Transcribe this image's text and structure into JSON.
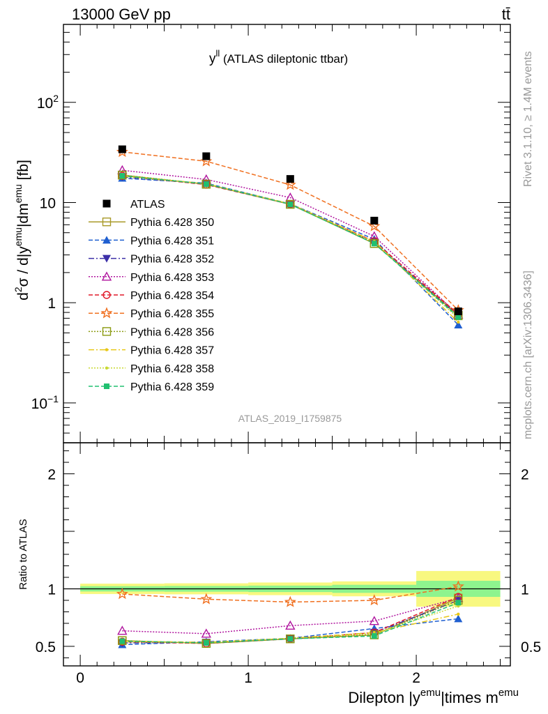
{
  "header": {
    "energy_label": "13000 GeV pp",
    "process_label": "tt̄"
  },
  "side_labels": {
    "rivet": "Rivet 3.1.10, ≥ 1.4M events",
    "mcplots": "mcplots.cern.ch [arXiv:1306.3436]"
  },
  "colors": {
    "ATLAS": "#000000",
    "p350": "#a89a28",
    "p351": "#1f5fd0",
    "p352": "#3c2fa8",
    "p353": "#b0149e",
    "p354": "#e01828",
    "p355": "#f07020",
    "p356": "#8a9a10",
    "p357": "#e8c818",
    "p358": "#c8d830",
    "p359": "#20c070",
    "band_inner": "#8ef48e",
    "band_outer": "#f8f880"
  },
  "chart_data": [
    {
      "type": "line",
      "panel": "main",
      "title": "y^ll (ATLAS dileptonic ttbar)",
      "title_main": "y",
      "title_sup": "ll",
      "title_rest": " (ATLAS dileptonic ttbar)",
      "ylabel": "d²σ / d|y^emu|dm^emu [fb]",
      "yscale": "log",
      "ylim": [
        0.04,
        600
      ],
      "xlim": [
        -0.1,
        2.56
      ],
      "yticks": [
        {
          "value": 0.1,
          "label": "10",
          "sup": "−1"
        },
        {
          "value": 1,
          "label": "1",
          "sup": ""
        },
        {
          "value": 10,
          "label": "10",
          "sup": ""
        },
        {
          "value": 100,
          "label": "10",
          "sup": "2"
        }
      ],
      "watermark": "ATLAS_2019_I1759875",
      "x": [
        0.25,
        0.75,
        1.25,
        1.75,
        2.25
      ],
      "data": {
        "name": "ATLAS",
        "values": [
          34,
          29,
          17.2,
          6.6,
          0.82
        ]
      },
      "series": [
        {
          "name": "Pythia 6.428 350",
          "key": "p350",
          "values": [
            18.8,
            15.2,
            9.6,
            3.9,
            0.75
          ]
        },
        {
          "name": "Pythia 6.428 351",
          "key": "p351",
          "values": [
            17.5,
            15.6,
            9.7,
            4.3,
            0.6
          ]
        },
        {
          "name": "Pythia 6.428 352",
          "key": "p352",
          "values": [
            18.0,
            15.4,
            9.6,
            4.0,
            0.74
          ]
        },
        {
          "name": "Pythia 6.428 353",
          "key": "p353",
          "values": [
            21.0,
            17.0,
            11.2,
            4.6,
            0.76
          ]
        },
        {
          "name": "Pythia 6.428 354",
          "key": "p354",
          "values": [
            18.5,
            15.1,
            9.6,
            4.1,
            0.77
          ]
        },
        {
          "name": "Pythia 6.428 355",
          "key": "p355",
          "values": [
            32.0,
            25.8,
            15.0,
            5.8,
            0.84
          ]
        },
        {
          "name": "Pythia 6.428 356",
          "key": "p356",
          "values": [
            18.8,
            15.3,
            9.6,
            3.9,
            0.74
          ]
        },
        {
          "name": "Pythia 6.428 357",
          "key": "p357",
          "values": [
            18.5,
            15.4,
            9.7,
            4.1,
            0.64
          ]
        },
        {
          "name": "Pythia 6.428 358",
          "key": "p358",
          "values": [
            18.3,
            15.3,
            9.7,
            4.0,
            0.7
          ]
        },
        {
          "name": "Pythia 6.428 359",
          "key": "p359",
          "values": [
            18.5,
            15.3,
            9.6,
            3.9,
            0.72
          ]
        }
      ]
    },
    {
      "type": "line",
      "panel": "ratio",
      "ylabel": "Ratio to ATLAS",
      "xlabel": "Dilepton |y^emu|times m^emu",
      "xlabel_parts": [
        "Dilepton |y",
        "emu",
        "|times m",
        "emu"
      ],
      "yscale": "linear",
      "ylim": [
        0.33,
        2.27
      ],
      "xlim": [
        -0.1,
        2.56
      ],
      "xticks": [
        {
          "value": 0,
          "label": "0"
        },
        {
          "value": 1,
          "label": "1"
        },
        {
          "value": 2,
          "label": "2"
        }
      ],
      "yticks": [
        {
          "value": 0.5,
          "label": "0.5"
        },
        {
          "value": 1,
          "label": "1"
        },
        {
          "value": 2,
          "label": "2"
        }
      ],
      "bands": [
        {
          "x0": 0,
          "x1": 0.5,
          "inner": [
            0.977,
            1.023
          ],
          "outer": [
            0.955,
            1.045
          ]
        },
        {
          "x0": 0.5,
          "x1": 1.0,
          "inner": [
            0.975,
            1.025
          ],
          "outer": [
            0.952,
            1.048
          ]
        },
        {
          "x0": 1.0,
          "x1": 1.5,
          "inner": [
            0.972,
            1.028
          ],
          "outer": [
            0.945,
            1.055
          ]
        },
        {
          "x0": 1.5,
          "x1": 2.0,
          "inner": [
            0.965,
            1.035
          ],
          "outer": [
            0.935,
            1.065
          ]
        },
        {
          "x0": 2.0,
          "x1": 2.5,
          "inner": [
            0.93,
            1.07
          ],
          "outer": [
            0.845,
            1.155
          ]
        }
      ],
      "x": [
        0.25,
        0.75,
        1.25,
        1.75,
        2.25
      ],
      "series": [
        {
          "name": "Pythia 6.428 350",
          "key": "p350",
          "values": [
            0.55,
            0.525,
            0.565,
            0.6,
            0.92
          ]
        },
        {
          "name": "Pythia 6.428 351",
          "key": "p351",
          "values": [
            0.515,
            0.54,
            0.57,
            0.655,
            0.74
          ]
        },
        {
          "name": "Pythia 6.428 352",
          "key": "p352",
          "values": [
            0.53,
            0.535,
            0.565,
            0.62,
            0.9
          ]
        },
        {
          "name": "Pythia 6.428 353",
          "key": "p353",
          "values": [
            0.635,
            0.61,
            0.68,
            0.72,
            0.92
          ]
        },
        {
          "name": "Pythia 6.428 354",
          "key": "p354",
          "values": [
            0.54,
            0.525,
            0.565,
            0.62,
            0.93
          ]
        },
        {
          "name": "Pythia 6.428 355",
          "key": "p355",
          "values": [
            0.955,
            0.91,
            0.885,
            0.9,
            1.02
          ]
        },
        {
          "name": "Pythia 6.428 356",
          "key": "p356",
          "values": [
            0.55,
            0.525,
            0.565,
            0.6,
            0.9
          ]
        },
        {
          "name": "Pythia 6.428 357",
          "key": "p357",
          "values": [
            0.545,
            0.535,
            0.57,
            0.62,
            0.78
          ]
        },
        {
          "name": "Pythia 6.428 358",
          "key": "p358",
          "values": [
            0.54,
            0.53,
            0.57,
            0.61,
            0.85
          ]
        },
        {
          "name": "Pythia 6.428 359",
          "key": "p359",
          "values": [
            0.545,
            0.53,
            0.565,
            0.59,
            0.88
          ]
        }
      ]
    }
  ]
}
